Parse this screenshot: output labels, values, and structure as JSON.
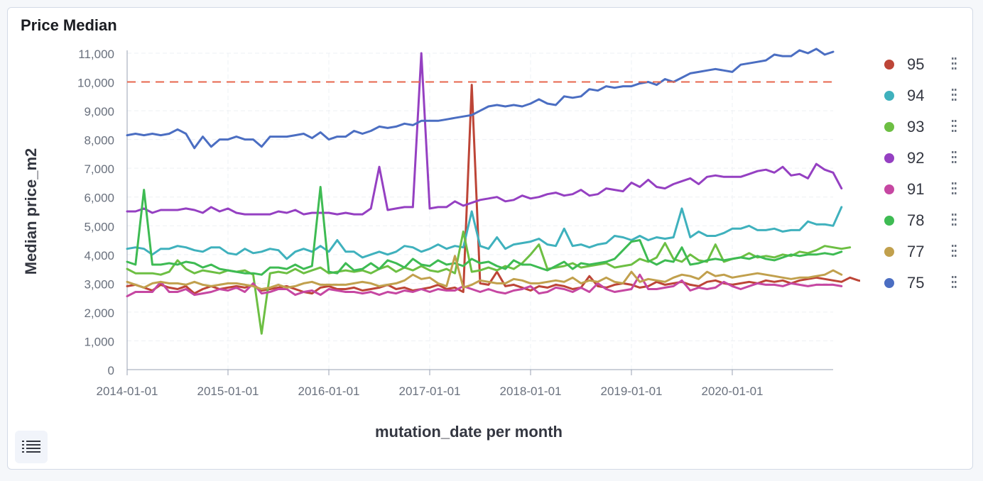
{
  "panel": {
    "title": "Price Median"
  },
  "chart_data": {
    "type": "line",
    "title": "Price Median",
    "xlabel": "mutation_date per month",
    "ylabel": "Median price_m2",
    "x_start": "2014-01",
    "x_ticks": [
      "2014-01-01",
      "2015-01-01",
      "2016-01-01",
      "2017-01-01",
      "2018-01-01",
      "2019-01-01",
      "2020-01-01"
    ],
    "y_ticks": [
      "0",
      "1,000",
      "2,000",
      "3,000",
      "4,000",
      "5,000",
      "6,000",
      "7,000",
      "8,000",
      "9,000",
      "10,000",
      "11,000"
    ],
    "ylim": [
      0,
      11000
    ],
    "threshold": {
      "value": 10000,
      "color": "#e7664c",
      "style": "dashed"
    },
    "grid": true,
    "legend_position": "right",
    "series": [
      {
        "name": "95",
        "color": "#bd4537",
        "values": [
          2900,
          2950,
          2850,
          2750,
          2950,
          2850,
          2800,
          2900,
          2650,
          2800,
          2900,
          2800,
          2850,
          2900,
          2850,
          2950,
          2750,
          2800,
          2850,
          2900,
          2800,
          2700,
          2650,
          2850,
          2900,
          2800,
          2800,
          2850,
          2750,
          2800,
          2850,
          2950,
          2800,
          2850,
          2750,
          2800,
          2850,
          2950,
          2800,
          2850,
          2700,
          9900,
          3000,
          2950,
          3400,
          2900,
          2950,
          2850,
          2750,
          2900,
          2850,
          2950,
          2900,
          2800,
          2850,
          3250,
          2900,
          2850,
          2950,
          3000,
          2950,
          2850,
          2900,
          3050,
          2950,
          3000,
          3050,
          2950,
          2900,
          3050,
          3100,
          3000,
          2950,
          3000,
          3050,
          3000,
          3100,
          3050,
          3100,
          3000,
          3100,
          3150,
          3200,
          3150,
          3100,
          3050,
          3200,
          3100,
          3050,
          3200,
          3100,
          3150,
          3200,
          3100,
          3250,
          3200
        ]
      },
      {
        "name": "94",
        "color": "#3fb1bd",
        "values": [
          4200,
          4250,
          4200,
          4000,
          4200,
          4200,
          4300,
          4250,
          4150,
          4100,
          4250,
          4250,
          4050,
          4000,
          4200,
          4050,
          4100,
          4200,
          4150,
          3850,
          4100,
          4200,
          4100,
          4300,
          4100,
          4500,
          4100,
          4100,
          3900,
          4000,
          4100,
          4000,
          4100,
          4300,
          4250,
          4100,
          4200,
          4350,
          4200,
          4300,
          4250,
          5500,
          4300,
          4200,
          4600,
          4200,
          4350,
          4400,
          4450,
          4550,
          4350,
          4300,
          4900,
          4300,
          4350,
          4250,
          4350,
          4400,
          4650,
          4600,
          4500,
          4650,
          4500,
          4600,
          4550,
          4600,
          5600,
          4600,
          4800,
          4650,
          4650,
          4750,
          4900,
          4900,
          5000,
          4850,
          4850,
          4900,
          4800,
          4850,
          4850,
          5150,
          5050,
          5050,
          5000,
          5650
        ]
      },
      {
        "name": "93",
        "color": "#6dbf43",
        "values": [
          3500,
          3350,
          3350,
          3350,
          3300,
          3400,
          3800,
          3500,
          3350,
          3450,
          3400,
          3350,
          3450,
          3400,
          3450,
          3300,
          1250,
          3350,
          3400,
          3350,
          3500,
          3350,
          3450,
          3550,
          3350,
          3400,
          3450,
          3400,
          3450,
          3350,
          3500,
          3600,
          3400,
          3550,
          3450,
          3600,
          3450,
          3400,
          3500,
          3350,
          4800,
          3400,
          3450,
          3550,
          3450,
          3600,
          3500,
          3700,
          4000,
          4350,
          3500,
          3550,
          3600,
          3700,
          3550,
          3600,
          3650,
          3700,
          3550,
          3600,
          3650,
          3850,
          3750,
          3900,
          4400,
          3850,
          3750,
          4000,
          3800,
          3750,
          4350,
          3750,
          3850,
          3900,
          4050,
          3900,
          3950,
          3900,
          4000,
          3950,
          4100,
          4050,
          4150,
          4300,
          4250,
          4200,
          4250
        ]
      },
      {
        "name": "92",
        "color": "#9540c2",
        "values": [
          5500,
          5500,
          5600,
          5450,
          5550,
          5550,
          5550,
          5600,
          5550,
          5450,
          5650,
          5500,
          5600,
          5450,
          5400,
          5400,
          5400,
          5400,
          5500,
          5450,
          5550,
          5400,
          5450,
          5450,
          5450,
          5400,
          5450,
          5400,
          5400,
          5600,
          7050,
          5550,
          5600,
          5650,
          5650,
          11000,
          5600,
          5650,
          5650,
          5850,
          5700,
          5800,
          5900,
          5950,
          6000,
          5850,
          5900,
          6050,
          5950,
          6000,
          6100,
          6150,
          6050,
          6100,
          6250,
          6050,
          6100,
          6300,
          6250,
          6200,
          6500,
          6350,
          6600,
          6350,
          6300,
          6450,
          6550,
          6650,
          6450,
          6700,
          6750,
          6700,
          6700,
          6700,
          6800,
          6900,
          6950,
          6850,
          7050,
          6750,
          6800,
          6650,
          7150,
          6950,
          6850,
          6300
        ]
      },
      {
        "name": "91",
        "color": "#c647a2",
        "values": [
          2550,
          2700,
          2700,
          2700,
          3050,
          2700,
          2700,
          2800,
          2600,
          2650,
          2700,
          2800,
          2750,
          2850,
          2700,
          3000,
          2650,
          2700,
          2800,
          2800,
          2600,
          2700,
          2750,
          2600,
          2800,
          2750,
          2700,
          2700,
          2650,
          2700,
          2600,
          2700,
          2650,
          2750,
          2700,
          2800,
          2700,
          2800,
          2750,
          2750,
          2900,
          2800,
          2700,
          2800,
          2700,
          2650,
          2750,
          2800,
          2900,
          2650,
          2700,
          2850,
          2800,
          2700,
          2850,
          2700,
          3000,
          2800,
          2700,
          2750,
          2800,
          3300,
          2800,
          2800,
          2850,
          2900,
          3100,
          2750,
          2850,
          2800,
          2850,
          3050,
          2900,
          2800,
          2900,
          3000,
          2950,
          2950,
          2900,
          3000,
          2950,
          2900,
          2950,
          2950,
          2950,
          2900
        ]
      },
      {
        "name": "78",
        "color": "#3ebb53",
        "values": [
          3750,
          3650,
          6250,
          3650,
          3650,
          3700,
          3650,
          3750,
          3700,
          3550,
          3650,
          3500,
          3450,
          3400,
          3350,
          3350,
          3300,
          3550,
          3550,
          3500,
          3650,
          3500,
          3600,
          6350,
          3400,
          3350,
          3700,
          3450,
          3500,
          3700,
          3500,
          3800,
          3700,
          3550,
          3850,
          3650,
          3600,
          3800,
          3650,
          3700,
          3600,
          3850,
          3700,
          3750,
          3600,
          3500,
          3800,
          3650,
          3650,
          3550,
          3450,
          3600,
          3750,
          3500,
          3700,
          3650,
          3700,
          3750,
          3850,
          4150,
          4450,
          4500,
          3800,
          3650,
          3800,
          3750,
          4250,
          3650,
          3700,
          3800,
          3850,
          3800,
          3850,
          3900,
          3850,
          3950,
          3850,
          3800,
          3900,
          4000,
          3950,
          4000,
          4000,
          4050,
          4000,
          4100
        ]
      },
      {
        "name": "77",
        "color": "#c1a04d",
        "values": [
          3050,
          2950,
          2850,
          3000,
          3050,
          3000,
          3000,
          2950,
          3050,
          2950,
          2900,
          2950,
          3000,
          3000,
          2950,
          2900,
          2800,
          2850,
          2950,
          2850,
          2900,
          3000,
          3050,
          2950,
          2950,
          2950,
          2950,
          3000,
          3050,
          3000,
          2900,
          2950,
          3000,
          3100,
          3300,
          3150,
          3200,
          3000,
          2900,
          3950,
          2850,
          2950,
          3100,
          3050,
          3000,
          3000,
          3150,
          3100,
          3000,
          3000,
          3050,
          3100,
          3050,
          3200,
          3000,
          3100,
          3050,
          3200,
          3050,
          3000,
          3400,
          3050,
          3150,
          3100,
          3050,
          3200,
          3300,
          3250,
          3150,
          3400,
          3250,
          3300,
          3200,
          3250,
          3300,
          3350,
          3300,
          3250,
          3200,
          3150,
          3200,
          3200,
          3250,
          3300,
          3450,
          3300
        ]
      },
      {
        "name": "75",
        "color": "#4b6ec2",
        "values": [
          8150,
          8200,
          8150,
          8200,
          8150,
          8200,
          8350,
          8200,
          7700,
          8100,
          7750,
          8000,
          8000,
          8100,
          8000,
          8000,
          7750,
          8100,
          8100,
          8100,
          8150,
          8200,
          8050,
          8250,
          8000,
          8100,
          8100,
          8300,
          8200,
          8300,
          8450,
          8400,
          8450,
          8550,
          8500,
          8650,
          8650,
          8650,
          8700,
          8750,
          8800,
          8850,
          9000,
          9150,
          9200,
          9150,
          9200,
          9150,
          9250,
          9400,
          9250,
          9200,
          9500,
          9450,
          9500,
          9750,
          9700,
          9850,
          9800,
          9850,
          9850,
          9950,
          10000,
          9900,
          10100,
          10000,
          10150,
          10300,
          10350,
          10400,
          10450,
          10400,
          10350,
          10600,
          10650,
          10700,
          10750,
          10950,
          10900,
          10900,
          11100,
          11000,
          11150,
          10950,
          11050
        ]
      }
    ]
  },
  "legend": {
    "items": [
      {
        "label": "95",
        "color": "#bd4537"
      },
      {
        "label": "94",
        "color": "#3fb1bd"
      },
      {
        "label": "93",
        "color": "#6dbf43"
      },
      {
        "label": "92",
        "color": "#9540c2"
      },
      {
        "label": "91",
        "color": "#c647a2"
      },
      {
        "label": "78",
        "color": "#3ebb53"
      },
      {
        "label": "77",
        "color": "#c1a04d"
      },
      {
        "label": "75",
        "color": "#4b6ec2"
      }
    ],
    "menu_icon": "vertical-dots-icon",
    "toggle_icon": "list-icon"
  }
}
